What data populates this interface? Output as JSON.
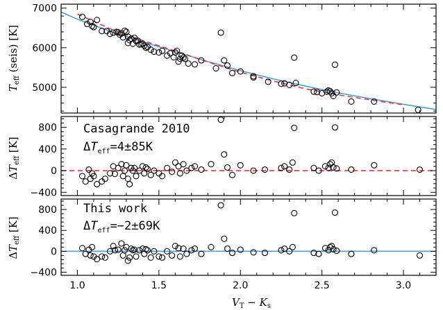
{
  "chart_data": {
    "type": "scatter",
    "xlabel": "V_T − K_s",
    "xlim": [
      0.9,
      3.2
    ],
    "xticks": [
      "1.0",
      "1.5",
      "2.0",
      "2.5",
      "3.0"
    ],
    "colors": {
      "fit_line": "#4a9fd8",
      "ref_line": "#e8343a",
      "points": "#000000",
      "axes": "#000000"
    },
    "panels": [
      {
        "id": "top",
        "ylabel": "T_eff (seis) [K]",
        "ylim": [
          4350,
          7100
        ],
        "yticks": [
          "5000",
          "6000",
          "7000"
        ],
        "lines": [
          {
            "style": "solid",
            "color": "#4a9fd8",
            "x": [
              0.9,
              1.0,
              1.2,
              1.4,
              1.6,
              1.8,
              2.0,
              2.2,
              2.4,
              2.6,
              2.8,
              3.0,
              3.2
            ],
            "y": [
              6900,
              6720,
              6420,
              6150,
              5900,
              5650,
              5420,
              5215,
              5030,
              4860,
              4710,
              4570,
              4440
            ]
          },
          {
            "style": "dashed",
            "color": "#e8343a",
            "x": [
              1.0,
              1.2,
              1.4,
              1.6,
              1.8,
              2.0,
              2.2,
              2.4,
              2.6,
              2.8,
              3.0
            ],
            "y": [
              6850,
              6480,
              6180,
              5920,
              5640,
              5380,
              5160,
              4960,
              4810,
              4680,
              4560
            ]
          }
        ],
        "points": {
          "x": [
            1.03,
            1.06,
            1.08,
            1.09,
            1.1,
            1.12,
            1.15,
            1.18,
            1.2,
            1.22,
            1.24,
            1.25,
            1.26,
            1.27,
            1.28,
            1.29,
            1.3,
            1.31,
            1.31,
            1.32,
            1.33,
            1.34,
            1.35,
            1.36,
            1.37,
            1.38,
            1.39,
            1.4,
            1.41,
            1.42,
            1.43,
            1.45,
            1.47,
            1.5,
            1.52,
            1.55,
            1.57,
            1.59,
            1.6,
            1.61,
            1.62,
            1.63,
            1.64,
            1.65,
            1.66,
            1.68,
            1.72,
            1.76,
            1.85,
            1.88,
            1.9,
            1.92,
            1.95,
            2.0,
            2.08,
            2.08,
            2.17,
            2.25,
            2.27,
            2.3,
            2.33,
            2.34,
            2.45,
            2.47,
            2.5,
            2.53,
            2.54,
            2.55,
            2.56,
            2.57,
            2.58,
            2.59,
            2.68,
            2.82,
            3.09
          ],
          "y": [
            6780,
            6600,
            6650,
            6550,
            6520,
            6700,
            6420,
            6420,
            6350,
            6380,
            6400,
            6390,
            6330,
            6360,
            6260,
            6430,
            6400,
            6280,
            6120,
            6190,
            6230,
            6100,
            6250,
            6170,
            6180,
            6080,
            6090,
            6100,
            6050,
            6000,
            6020,
            5950,
            5900,
            5880,
            5920,
            5800,
            5860,
            5760,
            5880,
            5920,
            5650,
            5720,
            5800,
            5750,
            5720,
            5600,
            5580,
            5680,
            5480,
            6380,
            5680,
            5550,
            5360,
            5400,
            5250,
            5280,
            5140,
            5090,
            5100,
            5060,
            5750,
            5110,
            4890,
            4880,
            4850,
            4890,
            4920,
            4900,
            4850,
            4780,
            5570,
            4870,
            4640,
            4640,
            4430
          ]
        }
      },
      {
        "id": "middle",
        "ylabel": "ΔT_eff [K]",
        "ylim": [
          -460,
          1000
        ],
        "yticks": [
          "−400",
          "0",
          "400",
          "800"
        ],
        "annotation_title": "Casagrande 2010",
        "annotation_value": "ΔTeff=4±85K",
        "lines": [
          {
            "style": "dashed",
            "color": "#e8343a",
            "x": [
              0.9,
              3.2
            ],
            "y": [
              0,
              0
            ]
          }
        ],
        "points": {
          "x": [
            1.03,
            1.05,
            1.07,
            1.08,
            1.09,
            1.1,
            1.12,
            1.15,
            1.17,
            1.2,
            1.22,
            1.23,
            1.25,
            1.27,
            1.28,
            1.29,
            1.3,
            1.31,
            1.32,
            1.33,
            1.34,
            1.35,
            1.36,
            1.38,
            1.4,
            1.41,
            1.42,
            1.43,
            1.45,
            1.47,
            1.5,
            1.52,
            1.55,
            1.58,
            1.6,
            1.62,
            1.63,
            1.65,
            1.67,
            1.7,
            1.72,
            1.76,
            1.82,
            1.88,
            1.9,
            1.92,
            1.95,
            2.0,
            2.08,
            2.15,
            2.25,
            2.27,
            2.3,
            2.32,
            2.33,
            2.45,
            2.48,
            2.52,
            2.54,
            2.55,
            2.56,
            2.57,
            2.58,
            2.59,
            2.68,
            2.82,
            3.1
          ],
          "y": [
            -100,
            -200,
            20,
            -150,
            -50,
            -100,
            -250,
            -200,
            -150,
            -50,
            80,
            -60,
            50,
            120,
            -100,
            0,
            100,
            -150,
            -250,
            50,
            0,
            50,
            -100,
            0,
            80,
            -50,
            60,
            30,
            -80,
            0,
            -50,
            -100,
            50,
            -20,
            150,
            80,
            -50,
            120,
            0,
            50,
            80,
            20,
            120,
            940,
            300,
            60,
            -80,
            100,
            0,
            20,
            50,
            80,
            20,
            150,
            790,
            50,
            0,
            80,
            50,
            120,
            150,
            60,
            800,
            40,
            20,
            100,
            20
          ]
        }
      },
      {
        "id": "bottom",
        "ylabel": "ΔT_eff [K]",
        "ylim": [
          -460,
          1000
        ],
        "yticks": [
          "−400",
          "0",
          "400",
          "800"
        ],
        "annotation_title": "This work",
        "annotation_value": "ΔTeff=−2±69K",
        "lines": [
          {
            "style": "solid",
            "color": "#4a9fd8",
            "x": [
              0.9,
              3.2
            ],
            "y": [
              0,
              0
            ]
          }
        ],
        "points": {
          "x": [
            1.03,
            1.05,
            1.07,
            1.08,
            1.09,
            1.1,
            1.12,
            1.15,
            1.17,
            1.2,
            1.22,
            1.23,
            1.25,
            1.27,
            1.28,
            1.29,
            1.3,
            1.31,
            1.32,
            1.33,
            1.34,
            1.35,
            1.36,
            1.38,
            1.4,
            1.41,
            1.42,
            1.43,
            1.45,
            1.47,
            1.5,
            1.52,
            1.55,
            1.58,
            1.6,
            1.62,
            1.63,
            1.65,
            1.67,
            1.7,
            1.72,
            1.76,
            1.82,
            1.88,
            1.9,
            1.92,
            1.95,
            2.0,
            2.08,
            2.15,
            2.25,
            2.27,
            2.3,
            2.32,
            2.33,
            2.45,
            2.48,
            2.52,
            2.54,
            2.55,
            2.56,
            2.57,
            2.58,
            2.59,
            2.68,
            2.82,
            3.1
          ],
          "y": [
            60,
            -50,
            30,
            -80,
            80,
            -100,
            -150,
            -100,
            -120,
            0,
            100,
            20,
            30,
            150,
            -80,
            20,
            80,
            -180,
            -120,
            50,
            20,
            30,
            -100,
            20,
            50,
            -50,
            40,
            20,
            -120,
            0,
            -100,
            -120,
            0,
            -80,
            100,
            60,
            -100,
            50,
            -50,
            20,
            50,
            -50,
            80,
            880,
            240,
            50,
            -30,
            30,
            -20,
            -30,
            20,
            50,
            0,
            80,
            730,
            -30,
            -50,
            60,
            20,
            80,
            100,
            40,
            740,
            10,
            -50,
            20,
            -80
          ]
        }
      }
    ]
  }
}
